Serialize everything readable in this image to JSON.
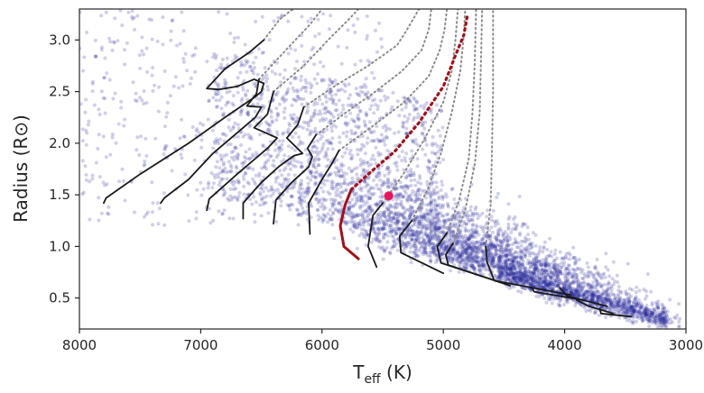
{
  "chart_data": {
    "type": "scatter",
    "title": "",
    "xlabel_base": "T",
    "xlabel_sub": "eff",
    "xlabel_unit": " (K)",
    "ylabel": "Radius (R⊙)",
    "xlim": [
      8000,
      3000
    ],
    "ylim": [
      0.2,
      3.3
    ],
    "x_inverted": true,
    "xticks": [
      8000,
      7000,
      6000,
      5000,
      4000,
      3000
    ],
    "yticks": [
      0.5,
      1.0,
      1.5,
      2.0,
      2.5,
      3.0
    ],
    "xtick_labels": [
      "8000",
      "7000",
      "6000",
      "5000",
      "4000",
      "3000"
    ],
    "ytick_labels": [
      "0.5",
      "1.0",
      "1.5",
      "2.0",
      "2.5",
      "3.0"
    ],
    "grid": false,
    "colors": {
      "scatter": "#2a2a9a",
      "track": "#1a1a1a",
      "track_dotted": "#8c8c8c",
      "highlight_track": "#a0101a",
      "marker": "#e8145a"
    },
    "series": [
      {
        "kind": "evolutionary_track_solid",
        "tracks": [
          [
            [
              7800,
              1.42
            ],
            [
              7780,
              1.47
            ],
            [
              7500,
              1.7
            ],
            [
              7100,
              2.0
            ],
            [
              6800,
              2.25
            ],
            [
              6550,
              2.45
            ],
            [
              6500,
              2.5
            ],
            [
              6480,
              2.58
            ],
            [
              6560,
              2.62
            ],
            [
              6700,
              2.55
            ],
            [
              6850,
              2.52
            ],
            [
              6950,
              2.53
            ],
            [
              6800,
              2.72
            ],
            [
              6600,
              2.88
            ],
            [
              6480,
              3.0
            ]
          ],
          [
            [
              7330,
              1.42
            ],
            [
              7300,
              1.47
            ],
            [
              7100,
              1.65
            ],
            [
              6900,
              1.9
            ],
            [
              6700,
              2.1
            ],
            [
              6550,
              2.25
            ],
            [
              6500,
              2.35
            ],
            [
              6620,
              2.36
            ],
            [
              6540,
              2.48
            ],
            [
              6520,
              2.62
            ]
          ],
          [
            [
              6950,
              1.35
            ],
            [
              6930,
              1.46
            ],
            [
              6700,
              1.7
            ],
            [
              6550,
              1.85
            ],
            [
              6450,
              1.95
            ],
            [
              6370,
              2.05
            ],
            [
              6560,
              2.15
            ],
            [
              6450,
              2.28
            ],
            [
              6400,
              2.5
            ]
          ],
          [
            [
              6650,
              1.27
            ],
            [
              6650,
              1.42
            ],
            [
              6500,
              1.62
            ],
            [
              6350,
              1.78
            ],
            [
              6230,
              1.88
            ],
            [
              6160,
              1.9
            ],
            [
              6290,
              2.05
            ],
            [
              6200,
              2.18
            ],
            [
              6150,
              2.35
            ]
          ],
          [
            [
              6400,
              1.22
            ],
            [
              6380,
              1.45
            ],
            [
              6250,
              1.62
            ],
            [
              6110,
              1.77
            ],
            [
              6080,
              1.87
            ],
            [
              6120,
              1.95
            ],
            [
              6050,
              2.08
            ]
          ],
          [
            [
              6100,
              1.12
            ],
            [
              6110,
              1.42
            ],
            [
              6000,
              1.65
            ],
            [
              5920,
              1.8
            ],
            [
              5860,
              1.93
            ]
          ],
          [
            [
              5550,
              0.8
            ],
            [
              5620,
              1.0
            ],
            [
              5580,
              1.3
            ],
            [
              5500,
              1.42
            ]
          ],
          [
            [
              5000,
              0.74
            ],
            [
              5350,
              0.94
            ],
            [
              5360,
              1.1
            ],
            [
              5260,
              1.25
            ]
          ],
          [
            [
              4550,
              0.66
            ],
            [
              5020,
              0.84
            ],
            [
              5050,
              1.0
            ],
            [
              4970,
              1.13
            ]
          ],
          [
            [
              4450,
              0.62
            ],
            [
              4960,
              0.82
            ],
            [
              4980,
              0.92
            ],
            [
              4920,
              1.03
            ]
          ],
          [
            [
              3950,
              0.53
            ],
            [
              4580,
              0.67
            ],
            [
              4640,
              0.85
            ],
            [
              4650,
              1.0
            ]
          ],
          [
            [
              3850,
              0.48
            ],
            [
              4250,
              0.56
            ],
            [
              4270,
              0.6
            ]
          ],
          [
            [
              3650,
              0.42
            ],
            [
              3980,
              0.52
            ],
            [
              4040,
              0.6
            ]
          ],
          [
            [
              3600,
              0.35
            ],
            [
              3800,
              0.42
            ],
            [
              3900,
              0.48
            ]
          ],
          [
            [
              3450,
              0.32
            ],
            [
              3700,
              0.35
            ],
            [
              3710,
              0.4
            ]
          ]
        ]
      },
      {
        "kind": "evolutionary_track_dotted",
        "tracks": [
          [
            [
              6480,
              3.0
            ],
            [
              6350,
              3.2
            ],
            [
              6240,
              3.3
            ]
          ],
          [
            [
              6520,
              2.62
            ],
            [
              6300,
              2.9
            ],
            [
              6100,
              3.15
            ],
            [
              6000,
              3.3
            ]
          ],
          [
            [
              6400,
              2.5
            ],
            [
              6150,
              2.75
            ],
            [
              5950,
              3.0
            ],
            [
              5780,
              3.2
            ],
            [
              5700,
              3.3
            ]
          ],
          [
            [
              6150,
              2.35
            ],
            [
              5900,
              2.55
            ],
            [
              5620,
              2.75
            ],
            [
              5380,
              2.95
            ],
            [
              5300,
              3.1
            ],
            [
              5200,
              3.3
            ]
          ],
          [
            [
              6050,
              2.08
            ],
            [
              5800,
              2.3
            ],
            [
              5560,
              2.5
            ],
            [
              5340,
              2.7
            ],
            [
              5180,
              2.9
            ],
            [
              5120,
              3.1
            ],
            [
              5100,
              3.3
            ]
          ],
          [
            [
              5860,
              1.93
            ],
            [
              5600,
              2.15
            ],
            [
              5320,
              2.4
            ],
            [
              5120,
              2.65
            ],
            [
              5030,
              2.9
            ],
            [
              4990,
              3.1
            ],
            [
              4970,
              3.3
            ]
          ],
          [
            [
              5500,
              1.42
            ],
            [
              5330,
              1.7
            ],
            [
              5150,
              2.05
            ],
            [
              5000,
              2.4
            ],
            [
              4930,
              2.7
            ],
            [
              4900,
              3.0
            ],
            [
              4880,
              3.3
            ]
          ],
          [
            [
              5260,
              1.25
            ],
            [
              5130,
              1.55
            ],
            [
              5020,
              1.9
            ],
            [
              4930,
              2.3
            ],
            [
              4860,
              2.7
            ],
            [
              4830,
              3.05
            ],
            [
              4820,
              3.3
            ]
          ],
          [
            [
              4970,
              1.13
            ],
            [
              4870,
              1.45
            ],
            [
              4790,
              1.85
            ],
            [
              4760,
              2.3
            ],
            [
              4740,
              2.8
            ],
            [
              4730,
              3.3
            ]
          ],
          [
            [
              4920,
              1.03
            ],
            [
              4820,
              1.35
            ],
            [
              4740,
              1.8
            ],
            [
              4700,
              2.3
            ],
            [
              4690,
              2.8
            ],
            [
              4680,
              3.3
            ]
          ],
          [
            [
              4650,
              1.0
            ],
            [
              4610,
              1.4
            ],
            [
              4600,
              1.9
            ],
            [
              4590,
              2.5
            ],
            [
              4590,
              3.3
            ]
          ]
        ]
      },
      {
        "kind": "highlight_track",
        "solid": [
          [
            5700,
            0.88
          ],
          [
            5820,
            1.0
          ],
          [
            5850,
            1.2
          ],
          [
            5810,
            1.4
          ],
          [
            5760,
            1.55
          ]
        ],
        "dotted": [
          [
            5760,
            1.55
          ],
          [
            5600,
            1.72
          ],
          [
            5400,
            1.92
          ],
          [
            5200,
            2.2
          ],
          [
            5000,
            2.55
          ],
          [
            4900,
            2.85
          ],
          [
            4830,
            3.05
          ],
          [
            4800,
            3.25
          ]
        ]
      },
      {
        "kind": "highlighted_star",
        "point": [
          5450,
          1.49
        ]
      }
    ]
  }
}
